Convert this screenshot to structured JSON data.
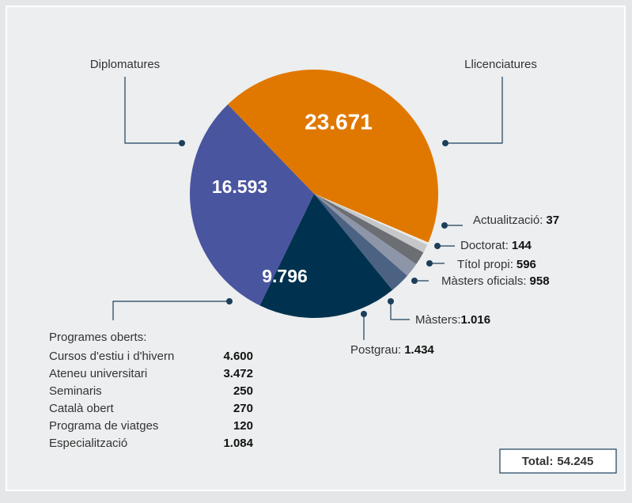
{
  "chart_data": {
    "type": "pie",
    "categories": [
      "Llicenciatures",
      "Actualització:",
      "Doctorat:",
      "Títol propi:",
      "Màsters oficials:",
      "Màsters:",
      "Postgrau:",
      "Programes oberts:",
      "Diplomatures"
    ],
    "values": [
      23671,
      37,
      144,
      596,
      958,
      1016,
      1434,
      9796,
      16593
    ],
    "value_labels": [
      "23.671",
      "37",
      "144",
      "596",
      "958",
      "1.016",
      "1.434",
      "9.796",
      "16.593"
    ],
    "colors": [
      "#e07800",
      "#ffffff",
      "#e6e7e8",
      "#c5c7c9",
      "#6b6e72",
      "#8d95a8",
      "#4b6283",
      "#00324f",
      "#4a55a0"
    ],
    "breakdown": {
      "categories": [
        "Cursos d'estiu i d'hivern",
        "Ateneu universitari",
        "Seminaris",
        "Català obert",
        "Programa de viatges",
        "Especialització"
      ],
      "values": [
        4600,
        3472,
        250,
        270,
        120,
        1084
      ],
      "value_labels": [
        "4.600",
        "3.472",
        "250",
        "270",
        "120",
        "1.084"
      ]
    },
    "total": {
      "label": "Total:",
      "value": 54245,
      "value_label": "54.245"
    }
  }
}
